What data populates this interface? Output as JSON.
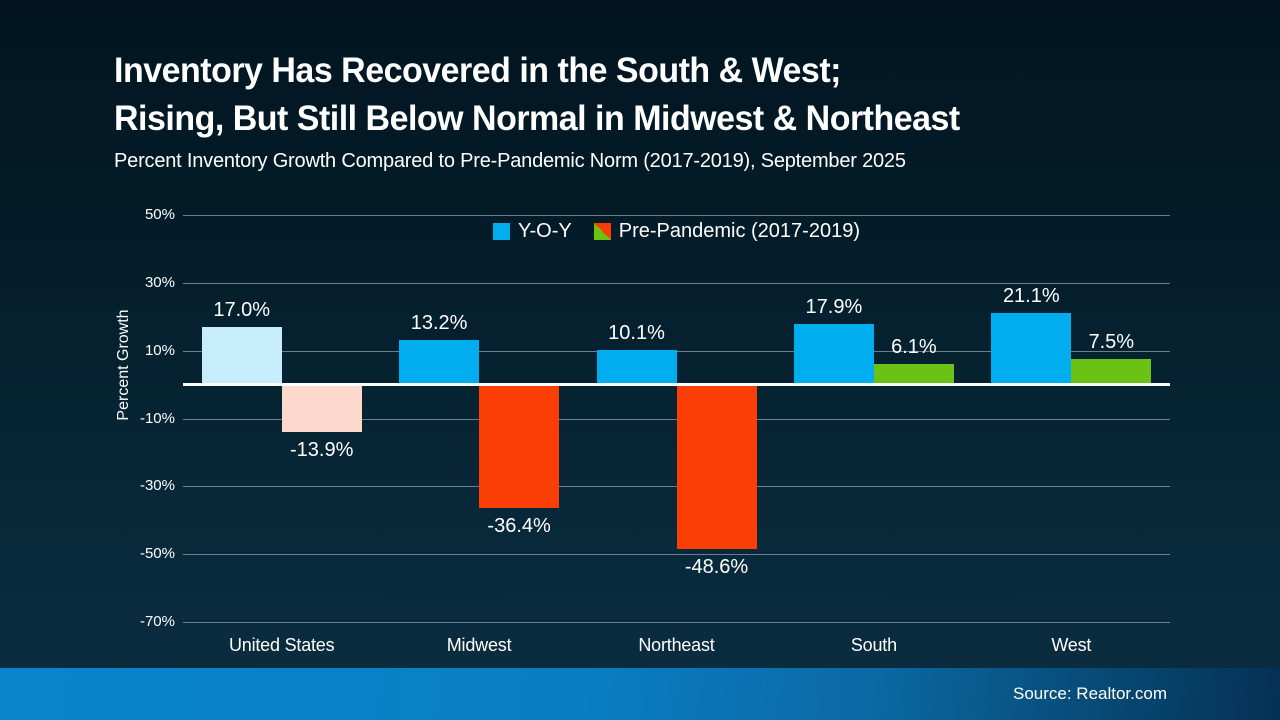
{
  "slide": {
    "title_line1": "Inventory Has Recovered in the South & West;",
    "title_line2": "Rising, But Still Below Normal in Midwest & Northeast",
    "subtitle": "Percent Inventory Growth Compared to Pre-Pandemic Norm (2017-2019), September 2025",
    "source": "Source: Realtor.com"
  },
  "colors": {
    "background_top": "#021520",
    "background_bottom": "#0b2d40",
    "yoy_blue": "#00AEEF",
    "yoy_blue_muted": "#C7ECFB",
    "negative_red": "#FB3E05",
    "negative_red_muted": "#FDD8CC",
    "positive_green": "#69C214",
    "gridline": "#6f7f8a",
    "zero_line": "#ffffff",
    "footer_gradient_left": "#0884cc",
    "footer_gradient_right": "#053056",
    "text": "#ffffff"
  },
  "chart_data": {
    "type": "bar",
    "title": "Inventory Has Recovered in the South & West; Rising, But Still Below Normal in Midwest & Northeast",
    "subtitle": "Percent Inventory Growth Compared to Pre-Pandemic Norm (2017-2019), September 2025",
    "categories": [
      "United States",
      "Midwest",
      "Northeast",
      "South",
      "West"
    ],
    "series": [
      {
        "name": "Y-O-Y",
        "values": [
          17.0,
          13.2,
          10.1,
          17.9,
          21.1
        ],
        "bar_colors": [
          "#C7ECFB",
          "#00AEEF",
          "#00AEEF",
          "#00AEEF",
          "#00AEEF"
        ]
      },
      {
        "name": "Pre-Pandemic (2017-2019)",
        "values": [
          -13.9,
          -36.4,
          -48.6,
          6.1,
          7.5
        ],
        "bar_colors": [
          "#FDD8CC",
          "#FB3E05",
          "#FB3E05",
          "#69C214",
          "#69C214"
        ]
      }
    ],
    "value_labels": [
      [
        "17.0%",
        "13.2%",
        "10.1%",
        "17.9%",
        "21.1%"
      ],
      [
        "-13.9%",
        "-36.4%",
        "-48.6%",
        "6.1%",
        "7.5%"
      ]
    ],
    "xlabel": "",
    "ylabel": "Percent Growth",
    "ylim": [
      -70,
      50
    ],
    "yticks": [
      50,
      30,
      10,
      -10,
      -30,
      -50,
      -70
    ],
    "ytick_labels": [
      "50%",
      "30%",
      "10%",
      "-10%",
      "-30%",
      "-50%",
      "-70%"
    ],
    "grid": "horizontal",
    "legend_position": "top-center",
    "legend": [
      {
        "label": "Y-O-Y",
        "swatch": "solid",
        "swatch_colors": [
          "#00AEEF"
        ]
      },
      {
        "label": "Pre-Pandemic (2017-2019)",
        "swatch": "diagonal-split",
        "swatch_colors": [
          "#69C214",
          "#FB3E05"
        ]
      }
    ]
  }
}
